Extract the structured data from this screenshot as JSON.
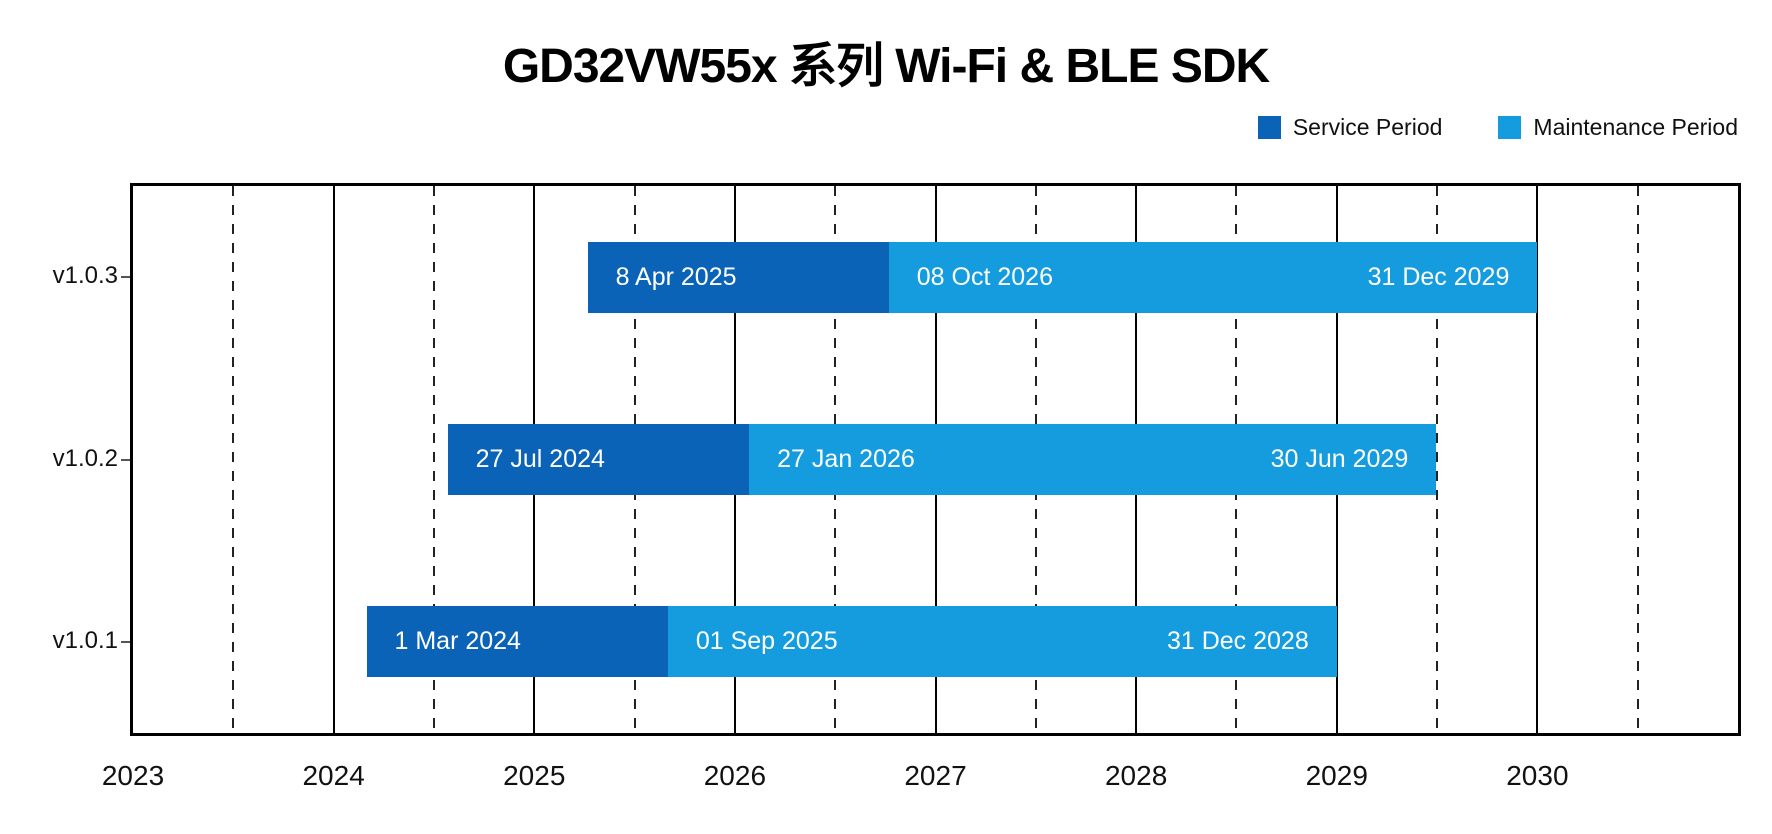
{
  "chart_data": {
    "type": "bar",
    "subtype": "gantt-timeline",
    "title": "GD32VW55x 系列 Wi-Fi & BLE SDK",
    "legend": {
      "position": "top-right",
      "items": [
        {
          "label": "Service Period",
          "color": "#0B63B8"
        },
        {
          "label": "Maintenance Period",
          "color": "#149CDF"
        }
      ]
    },
    "x_axis": {
      "domain_years": [
        2023,
        2031
      ],
      "tick_labels": [
        "2023",
        "2024",
        "2025",
        "2026",
        "2027",
        "2028",
        "2029",
        "2030"
      ],
      "gridlines": {
        "solid": "year start (1 Jan)",
        "dashed": "mid-year (1 Jul)"
      }
    },
    "y_axis": {
      "categories": [
        "v1.0.3",
        "v1.0.2",
        "v1.0.1"
      ]
    },
    "colors": {
      "service": "#0B63B8",
      "maintenance": "#149CDF"
    },
    "rows": [
      {
        "version": "v1.0.3",
        "service": {
          "start_date": "2025-04-08",
          "start_label": "8 Apr 2025"
        },
        "maintenance": {
          "start_date": "2026-10-08",
          "start_label": "08 Oct 2026"
        },
        "end": {
          "date": "2029-12-31",
          "label": "31 Dec 2029"
        }
      },
      {
        "version": "v1.0.2",
        "service": {
          "start_date": "2024-07-27",
          "start_label": "27 Jul 2024"
        },
        "maintenance": {
          "start_date": "2026-01-27",
          "start_label": "27 Jan 2026"
        },
        "end": {
          "date": "2029-06-30",
          "label": "30 Jun 2029"
        }
      },
      {
        "version": "v1.0.1",
        "service": {
          "start_date": "2024-03-01",
          "start_label": "1 Mar 2024"
        },
        "maintenance": {
          "start_date": "2025-09-01",
          "start_label": "01 Sep 2025"
        },
        "end": {
          "date": "2028-12-31",
          "label": "31 Dec 2028"
        }
      }
    ]
  }
}
